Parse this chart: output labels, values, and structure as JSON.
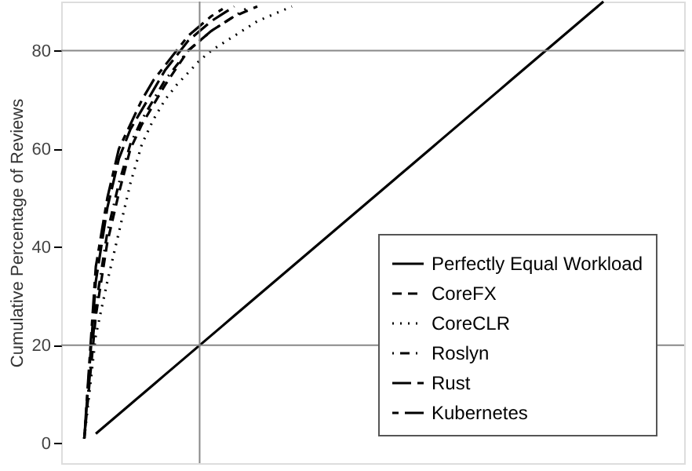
{
  "chart_data": {
    "type": "line",
    "ylabel": "Cumulative Percentage of Reviews",
    "categories": [
      null,
      null,
      null,
      null,
      null,
      null,
      null,
      null,
      null,
      null,
      null,
      null,
      null,
      null,
      null,
      null,
      null,
      null,
      null,
      null,
      null,
      null,
      null,
      null,
      null,
      null,
      null,
      null,
      null,
      null,
      null,
      null,
      null,
      null,
      null,
      null,
      null,
      null,
      null,
      null,
      null,
      null,
      null,
      null,
      null,
      null,
      null,
      null,
      null,
      null,
      null,
      null,
      null,
      null,
      null
    ],
    "ylim": [
      -4,
      90
    ],
    "yticks": [
      0,
      20,
      40,
      60,
      80
    ],
    "grid": false,
    "legend": "bottom right",
    "marker": "none",
    "ref_lines": [
      {
        "axis": "y",
        "value": 20,
        "color": "#888888"
      },
      {
        "axis": "y",
        "value": 80,
        "color": "#888888"
      }
    ],
    "series": [
      {
        "name": "Perfectly Equal Workload",
        "color": "#000000",
        "line_style": "solid",
        "values": [
          null,
          null,
          null,
          2,
          4,
          6,
          8,
          10,
          12,
          14,
          16,
          18,
          20,
          22,
          24,
          26,
          28,
          30,
          32,
          34,
          36,
          38,
          40,
          42,
          44,
          46,
          48,
          50,
          52,
          54,
          56,
          58,
          60,
          62,
          64,
          66,
          68,
          70,
          72,
          74,
          76,
          78,
          80,
          82,
          84,
          86,
          88,
          90,
          null,
          null,
          null,
          null,
          null,
          null,
          null
        ]
      },
      {
        "name": "CoreFX",
        "color": "#000000",
        "line_style": "dashed",
        "values": [
          null,
          null,
          1,
          26,
          41,
          51,
          60,
          65,
          69,
          73,
          76.5,
          80,
          82,
          84,
          85.5,
          87,
          88,
          89,
          null,
          null,
          null,
          null,
          null,
          null,
          null,
          null,
          null,
          null,
          null,
          null,
          null,
          null,
          null,
          null,
          null,
          null,
          null,
          null,
          null,
          null,
          null,
          null,
          null,
          null,
          null,
          null,
          null,
          null,
          null,
          null,
          null,
          null,
          null,
          null,
          null
        ]
      },
      {
        "name": "CoreCLR",
        "color": "#000000",
        "line_style": "dotted",
        "values": [
          null,
          null,
          1,
          22,
          33,
          43,
          53,
          61,
          66,
          70,
          73,
          75.5,
          78,
          80,
          81.5,
          83,
          84.5,
          86,
          87,
          88,
          89,
          null,
          null,
          null,
          null,
          null,
          null,
          null,
          null,
          null,
          null,
          null,
          null,
          null,
          null,
          null,
          null,
          null,
          null,
          null,
          null,
          null,
          null,
          null,
          null,
          null,
          null,
          null,
          null,
          null,
          null,
          null,
          null,
          null,
          null
        ]
      },
      {
        "name": "Roslyn",
        "color": "#000000",
        "line_style": "dashdot",
        "values": [
          null,
          null,
          1,
          28,
          43,
          53,
          61,
          66,
          70,
          74,
          77,
          80,
          82,
          84,
          85.5,
          87,
          88.5,
          null,
          null,
          null,
          null,
          null,
          null,
          null,
          null,
          null,
          null,
          null,
          null,
          null,
          null,
          null,
          null,
          null,
          null,
          null,
          null,
          null,
          null,
          null,
          null,
          null,
          null,
          null,
          null,
          null,
          null,
          null,
          null,
          null,
          null,
          null,
          null,
          null,
          null
        ]
      },
      {
        "name": "Rust",
        "color": "#000000",
        "line_style": "longdash",
        "values": [
          null,
          null,
          1,
          33,
          48,
          58,
          64,
          68,
          72,
          76,
          79,
          82,
          84,
          86,
          87.5,
          89,
          null,
          null,
          null,
          null,
          null,
          null,
          null,
          null,
          null,
          null,
          null,
          null,
          null,
          null,
          null,
          null,
          null,
          null,
          null,
          null,
          null,
          null,
          null,
          null,
          null,
          null,
          null,
          null,
          null,
          null,
          null,
          null,
          null,
          null,
          null,
          null,
          null,
          null,
          null
        ]
      },
      {
        "name": "Kubernetes",
        "color": "#000000",
        "line_style": "twodash",
        "values": [
          null,
          null,
          1,
          36,
          50,
          60,
          65,
          70,
          74,
          77,
          80,
          83,
          85,
          87,
          88.5,
          null,
          null,
          null,
          null,
          null,
          null,
          null,
          null,
          null,
          null,
          null,
          null,
          null,
          null,
          null,
          null,
          null,
          null,
          null,
          null,
          null,
          null,
          null,
          null,
          null,
          null,
          null,
          null,
          null,
          null,
          null,
          null,
          null,
          null,
          null,
          null,
          null,
          null,
          null,
          null
        ]
      }
    ]
  }
}
